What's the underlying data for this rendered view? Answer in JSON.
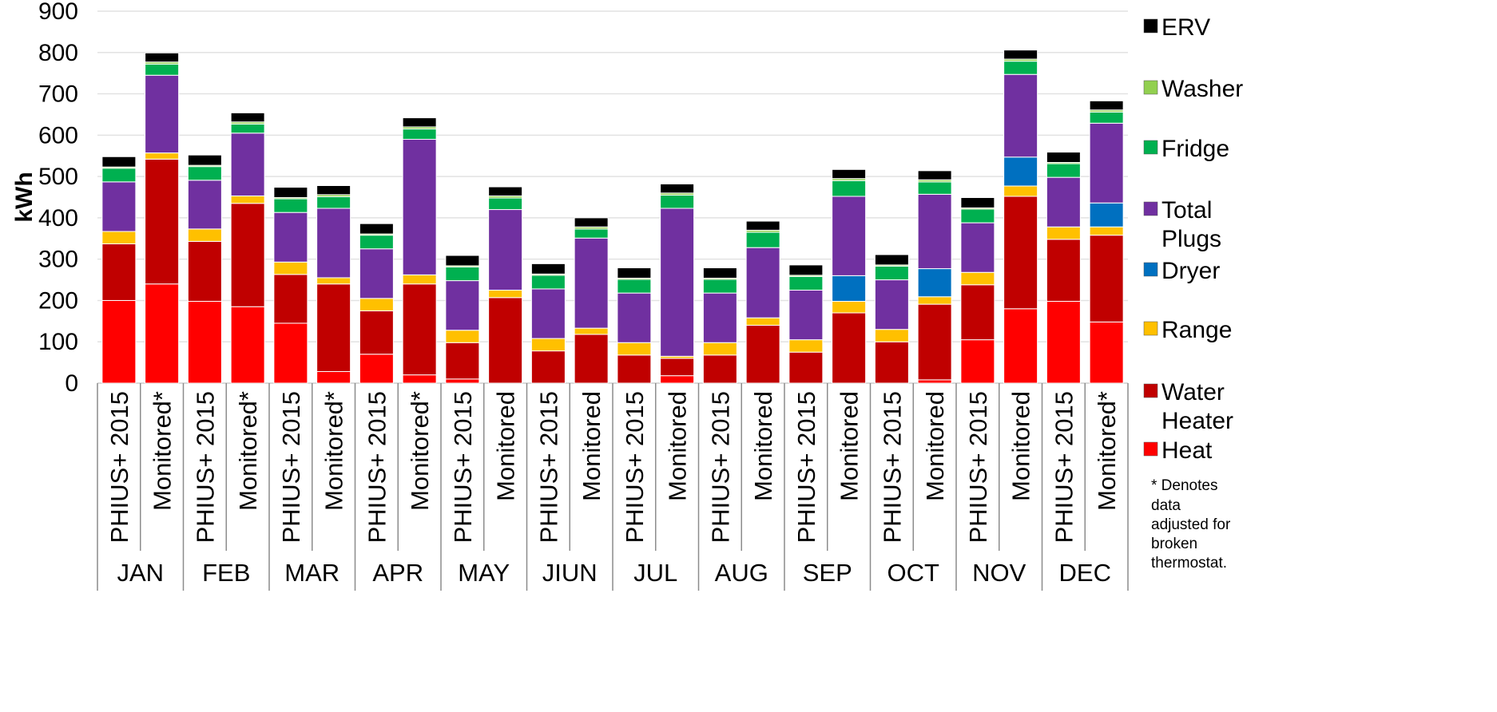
{
  "chart_data": {
    "type": "bar",
    "stacked": true,
    "ylabel": "kWh",
    "ylim": [
      0,
      900
    ],
    "yticks": [
      0,
      100,
      200,
      300,
      400,
      500,
      600,
      700,
      800,
      900
    ],
    "grid": true,
    "legend_position": "right",
    "months": [
      "JAN",
      "FEB",
      "MAR",
      "APR",
      "MAY",
      "JIUN",
      "JUL",
      "AUG",
      "SEP",
      "OCT",
      "NOV",
      "DEC"
    ],
    "bar_labels": [
      "PHIUS+ 2015",
      "Monitored*",
      "PHIUS+ 2015",
      "Monitored*",
      "PHIUS+ 2015",
      "Monitored*",
      "PHIUS+ 2015",
      "Monitored*",
      "PHIUS+ 2015",
      "Monitored",
      "PHIUS+ 2015",
      "Monitored",
      "PHIUS+ 2015",
      "Monitored",
      "PHIUS+ 2015",
      "Monitored",
      "PHIUS+ 2015",
      "Monitored",
      "PHIUS+ 2015",
      "Monitored",
      "PHIUS+ 2015",
      "Monitored",
      "PHIUS+ 2015",
      "Monitored*"
    ],
    "series": [
      {
        "name": "Heat",
        "color": "#ff0000",
        "values": [
          200,
          240,
          198,
          185,
          145,
          28,
          70,
          20,
          10,
          0,
          0,
          0,
          0,
          18,
          0,
          0,
          0,
          0,
          0,
          8,
          105,
          180,
          198,
          148
        ]
      },
      {
        "name": "Water Heater",
        "color": "#c00000",
        "values": [
          137,
          302,
          145,
          250,
          118,
          212,
          105,
          220,
          88,
          207,
          78,
          118,
          68,
          42,
          68,
          140,
          75,
          170,
          100,
          183,
          133,
          272,
          150,
          210
        ]
      },
      {
        "name": "Range",
        "color": "#ffc000",
        "values": [
          30,
          15,
          30,
          18,
          30,
          15,
          30,
          22,
          30,
          18,
          30,
          15,
          30,
          5,
          30,
          18,
          30,
          28,
          30,
          18,
          30,
          25,
          30,
          20
        ]
      },
      {
        "name": "Dryer",
        "color": "#0070c0",
        "values": [
          0,
          0,
          0,
          0,
          0,
          0,
          0,
          0,
          0,
          0,
          0,
          0,
          0,
          0,
          0,
          0,
          0,
          62,
          0,
          68,
          0,
          70,
          0,
          58
        ]
      },
      {
        "name": "Total Plugs",
        "color": "#7030a0",
        "values": [
          120,
          188,
          118,
          152,
          120,
          168,
          120,
          328,
          120,
          195,
          120,
          218,
          120,
          358,
          120,
          170,
          120,
          192,
          120,
          180,
          120,
          200,
          120,
          193
        ]
      },
      {
        "name": "Fridge",
        "color": "#00b050",
        "values": [
          33,
          27,
          33,
          22,
          33,
          28,
          33,
          25,
          33,
          28,
          33,
          22,
          33,
          32,
          33,
          37,
          33,
          38,
          33,
          30,
          33,
          32,
          33,
          27
        ]
      },
      {
        "name": "Washer",
        "color": "#92d050",
        "values": [
          3,
          5,
          3,
          5,
          3,
          5,
          3,
          5,
          3,
          5,
          3,
          5,
          3,
          5,
          3,
          5,
          3,
          5,
          3,
          5,
          3,
          5,
          3,
          5
        ]
      },
      {
        "name": "ERV",
        "color": "#000000",
        "values": [
          25,
          22,
          25,
          22,
          25,
          22,
          25,
          22,
          25,
          22,
          25,
          22,
          25,
          22,
          25,
          22,
          25,
          22,
          25,
          22,
          25,
          22,
          25,
          22
        ]
      }
    ],
    "legend_entries": [
      {
        "key": "ERV",
        "lines": [
          "ERV"
        ],
        "color": "#000000"
      },
      {
        "key": "Washer",
        "lines": [
          "Washer"
        ],
        "color": "#92d050"
      },
      {
        "key": "Fridge",
        "lines": [
          "Fridge"
        ],
        "color": "#00b050"
      },
      {
        "key": "Total Plugs",
        "lines": [
          "Total",
          "Plugs"
        ],
        "color": "#7030a0"
      },
      {
        "key": "Dryer",
        "lines": [
          "Dryer"
        ],
        "color": "#0070c0"
      },
      {
        "key": "Range",
        "lines": [
          "Range"
        ],
        "color": "#ffc000"
      },
      {
        "key": "Water Heater",
        "lines": [
          "Water",
          "Heater"
        ],
        "color": "#c00000"
      },
      {
        "key": "Heat",
        "lines": [
          "Heat"
        ],
        "color": "#ff0000"
      }
    ],
    "annotation_lines": [
      "* Denotes",
      "data",
      "adjusted for",
      "broken",
      "thermostat."
    ]
  }
}
